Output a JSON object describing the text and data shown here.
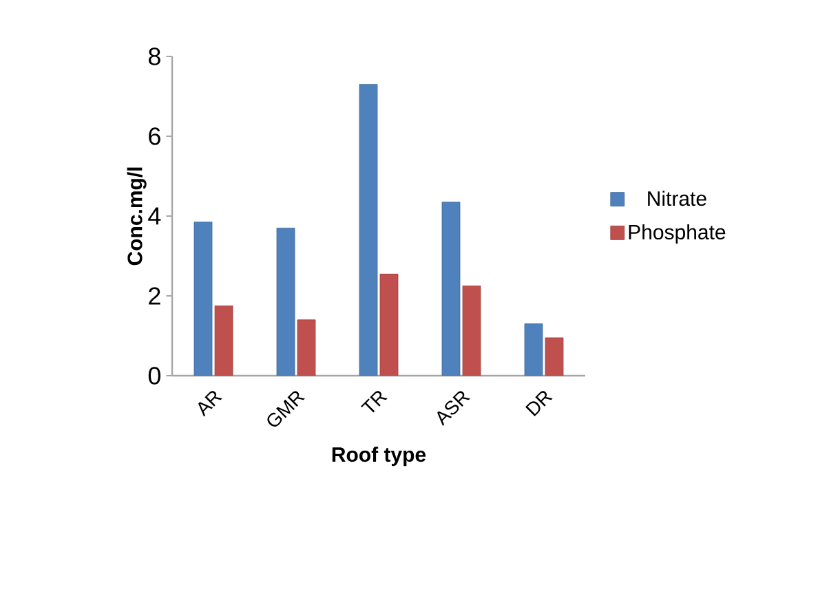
{
  "chart_data": {
    "type": "bar",
    "xlabel": "Roof type",
    "ylabel": "Conc.mg/l",
    "categories": [
      "AR",
      "GMR",
      "TR",
      "ASR",
      "DR"
    ],
    "series": [
      {
        "name": "Nitrate",
        "color": "#4f81bd",
        "values": [
          3.85,
          3.7,
          7.3,
          4.35,
          1.3
        ]
      },
      {
        "name": "Phosphate",
        "color": "#c0504d",
        "values": [
          1.75,
          1.4,
          2.55,
          2.25,
          0.95
        ]
      }
    ],
    "ylim": [
      0,
      8
    ],
    "yticks": [
      0,
      2,
      4,
      6,
      8
    ],
    "grid": false,
    "legend": "right"
  }
}
